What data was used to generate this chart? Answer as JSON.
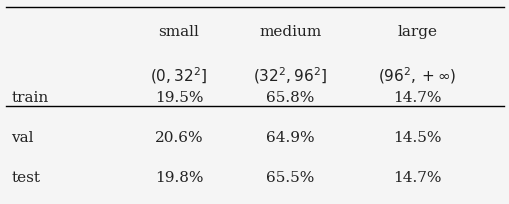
{
  "col_headers": [
    "",
    "small\n$(0, 32^2]$",
    "medium\n$(32^2, 96^2]$",
    "large\n$(96^2, +\\infty)$"
  ],
  "rows": [
    [
      "train",
      "19.5%",
      "65.8%",
      "14.7%"
    ],
    [
      "val",
      "20.6%",
      "64.9%",
      "14.5%"
    ],
    [
      "test",
      "19.8%",
      "65.5%",
      "14.7%"
    ]
  ],
  "bg_color": "#f5f5f5",
  "text_color": "#222222",
  "font_size": 11,
  "header_font_size": 11
}
